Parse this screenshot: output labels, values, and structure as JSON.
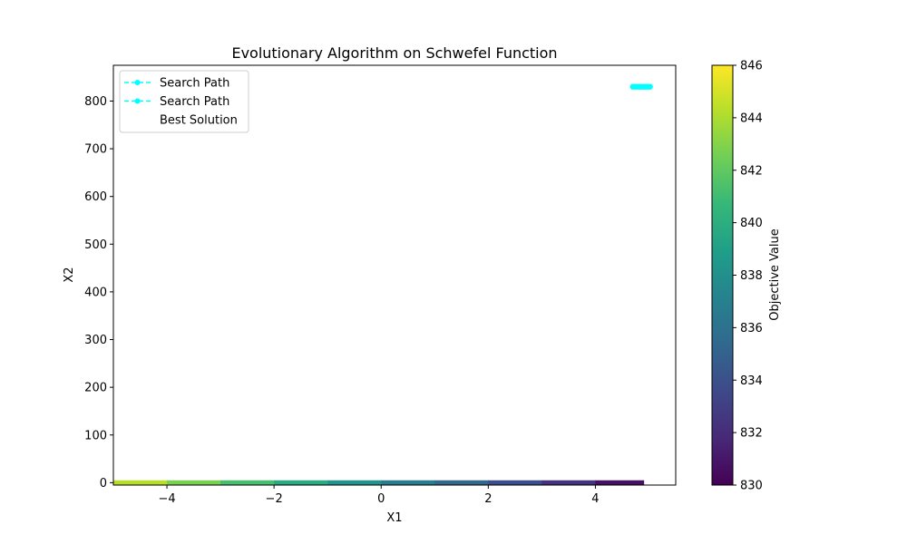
{
  "chart_data": {
    "type": "scatter",
    "title": "Evolutionary Algorithm on Schwefel Function",
    "xlabel": "X1",
    "ylabel": "X2",
    "xlim": [
      -5,
      5.5
    ],
    "ylim": [
      -5,
      875
    ],
    "x_ticks": [
      -4,
      -2,
      0,
      2,
      4
    ],
    "x_tick_labels": [
      "−4",
      "−2",
      "0",
      "2",
      "4"
    ],
    "y_ticks": [
      0,
      100,
      200,
      300,
      400,
      500,
      600,
      700,
      800
    ],
    "y_tick_labels": [
      "0",
      "100",
      "200",
      "300",
      "400",
      "500",
      "600",
      "700",
      "800"
    ],
    "grid": false,
    "legend_position": "upper-left",
    "legend": [
      {
        "label": "Search Path",
        "style": "dashed-marker",
        "color": "#00ffff"
      },
      {
        "label": "Search Path",
        "style": "dashed-marker",
        "color": "#00ffff"
      },
      {
        "label": "Best Solution",
        "style": "none",
        "color": "#ffffff"
      }
    ],
    "series": [
      {
        "name": "Search Path",
        "color": "#00ffff",
        "x": [
          4.7,
          4.74,
          4.78,
          4.82,
          4.86,
          4.9,
          4.94,
          4.98,
          5.02
        ],
        "y": [
          830,
          830,
          830,
          830,
          830,
          830,
          830,
          830,
          830
        ]
      }
    ],
    "contour": {
      "x": [
        -5,
        -4,
        -3,
        -2,
        -1,
        0,
        1,
        2,
        3,
        4,
        4.9
      ],
      "y_range": [
        -5,
        5
      ],
      "values": [
        845,
        843.5,
        842,
        840.5,
        839,
        837.5,
        836,
        834.5,
        833,
        831.5,
        830
      ],
      "colormap": "viridis"
    },
    "colorbar": {
      "label": "Objective Value",
      "min": 830,
      "max": 846,
      "ticks": [
        830,
        832,
        834,
        836,
        838,
        840,
        842,
        844,
        846
      ],
      "tick_labels": [
        "830",
        "832",
        "834",
        "836",
        "838",
        "840",
        "842",
        "844",
        "846"
      ],
      "colormap": "viridis"
    }
  }
}
